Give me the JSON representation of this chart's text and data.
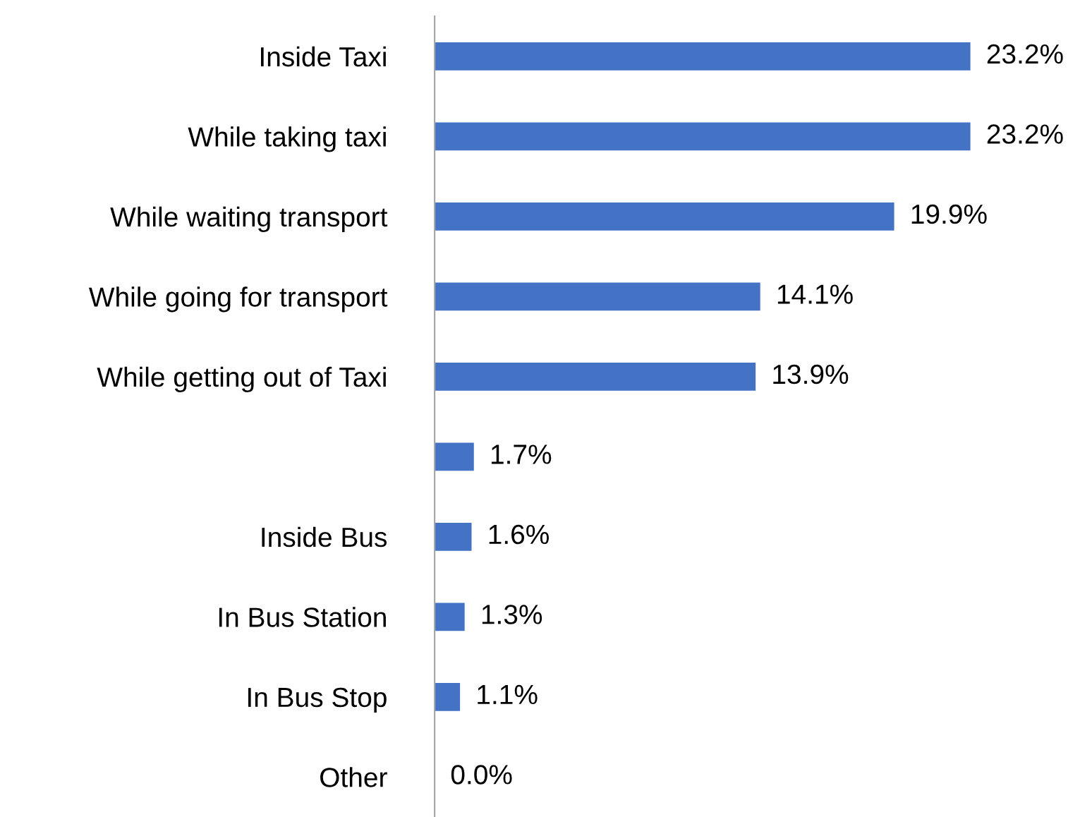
{
  "chart_data": {
    "type": "bar",
    "orientation": "horizontal",
    "categories": [
      "Inside Taxi",
      "While taking taxi",
      "While waiting transport",
      "While going for transport",
      "While getting out of Taxi",
      null,
      "Inside Bus",
      "In Bus Station",
      "In Bus Stop",
      "Other"
    ],
    "values": [
      23.2,
      23.2,
      19.9,
      14.1,
      13.9,
      1.7,
      1.6,
      1.3,
      1.1,
      0.0
    ],
    "value_labels": [
      "23.2%",
      "23.2%",
      "19.9%",
      "14.1%",
      "13.9%",
      "1.7%",
      "1.6%",
      "1.3%",
      "1.1%",
      "0.0%"
    ],
    "color": "#4472c4",
    "grid": false,
    "legend": false
  }
}
